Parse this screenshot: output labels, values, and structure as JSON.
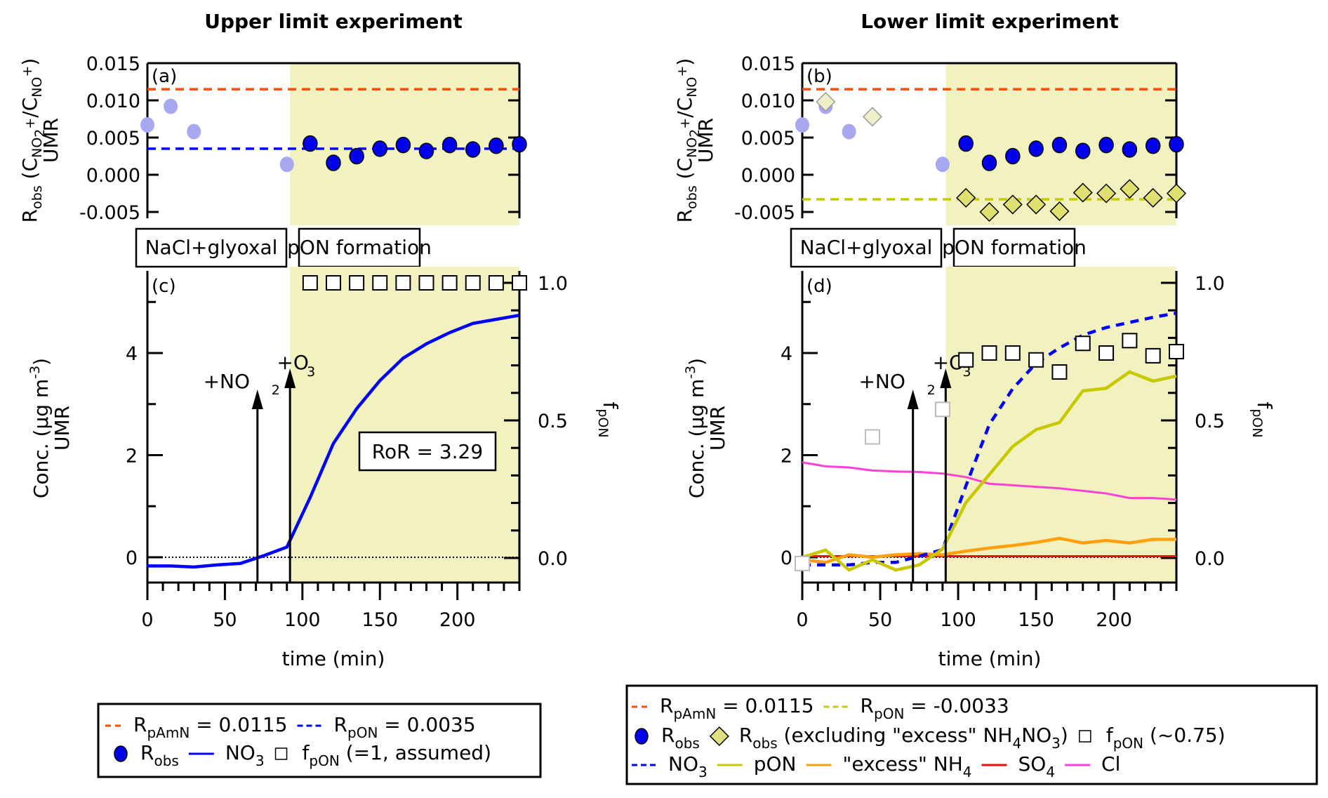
{
  "chart_data": [
    {
      "panel": "(a)",
      "column_title": "Upper limit experiment",
      "type": "scatter",
      "ylabel_main": "R",
      "ylabel_sub": "obs",
      "ylabel_rest": "(C",
      "ylabel_line2": "UMR",
      "ylabel_full": "R_obs (C_NO2+/C_NO+) UMR",
      "xlim": [
        0,
        240
      ],
      "ylim": [
        -0.005,
        0.015
      ],
      "yticks": [
        "0.015",
        "0.010",
        "0.005",
        "0.000",
        "-0.005"
      ],
      "ytick_values": [
        0.015,
        0.01,
        0.005,
        0.0,
        -0.005
      ],
      "shaded_region_start": 92,
      "hlines": [
        {
          "name": "R_pAmN",
          "value": 0.0115,
          "color": "#ff4c00",
          "style": "dashed"
        },
        {
          "name": "R_pON",
          "value": 0.0035,
          "color": "#0000ff",
          "style": "dashed"
        }
      ],
      "series": [
        {
          "name": "R_obs (faded, pre-formation)",
          "marker": "circle",
          "color": "#a8a8f0",
          "x": [
            0,
            15,
            30,
            90
          ],
          "y": [
            0.0067,
            0.0092,
            0.0058,
            0.0014
          ]
        },
        {
          "name": "R_obs",
          "marker": "circle",
          "color": "#0000ee",
          "x": [
            105,
            120,
            135,
            150,
            165,
            180,
            195,
            210,
            225,
            240
          ],
          "y": [
            0.0042,
            0.0016,
            0.0025,
            0.0035,
            0.004,
            0.0032,
            0.004,
            0.0034,
            0.0039,
            0.0041
          ]
        }
      ],
      "phase_labels": [
        "NaCl+glyoxal",
        "pON formation"
      ]
    },
    {
      "panel": "(b)",
      "column_title": "Lower limit experiment",
      "type": "scatter",
      "ylabel_full": "R_obs (C_NO2+/C_NO+) UMR",
      "xlim": [
        0,
        240
      ],
      "ylim": [
        -0.005,
        0.015
      ],
      "yticks": [
        "0.015",
        "0.010",
        "0.005",
        "0.000",
        "-0.005"
      ],
      "ytick_values": [
        0.015,
        0.01,
        0.005,
        0.0,
        -0.005
      ],
      "shaded_region_start": 92,
      "hlines": [
        {
          "name": "R_pAmN",
          "value": 0.0115,
          "color": "#ff4c00",
          "style": "dashed"
        },
        {
          "name": "R_pON",
          "value": -0.0033,
          "color": "#c8c800",
          "style": "dashed"
        }
      ],
      "series": [
        {
          "name": "R_obs (faded, pre-formation)",
          "marker": "circle",
          "color": "#a8a8f0",
          "x": [
            0,
            15,
            30,
            90
          ],
          "y": [
            0.0067,
            0.0092,
            0.0058,
            0.0014
          ]
        },
        {
          "name": "R_obs excl. excess NH4NO3 (faded)",
          "marker": "diamond",
          "color": "#f0f0c8",
          "x": [
            15,
            45
          ],
          "y": [
            0.0098,
            0.0078
          ]
        },
        {
          "name": "R_obs",
          "marker": "circle",
          "color": "#0000ee",
          "x": [
            105,
            120,
            135,
            150,
            165,
            180,
            195,
            210,
            225,
            240
          ],
          "y": [
            0.0042,
            0.0016,
            0.0025,
            0.0035,
            0.004,
            0.0032,
            0.004,
            0.0034,
            0.0039,
            0.0041
          ]
        },
        {
          "name": "R_obs (excluding \"excess\" NH4NO3)",
          "marker": "diamond",
          "color": "#e0e070",
          "x": [
            105,
            120,
            135,
            150,
            165,
            180,
            195,
            210,
            225,
            240
          ],
          "y": [
            -0.0031,
            -0.005,
            -0.004,
            -0.004,
            -0.0049,
            -0.0024,
            -0.0025,
            -0.0019,
            -0.0031,
            -0.0025
          ]
        }
      ],
      "phase_labels": [
        "NaCl+glyoxal",
        "pON formation"
      ]
    },
    {
      "panel": "(c)",
      "type": "line",
      "xlabel": "time (min)",
      "ylabel_full": "Conc. (µg m^-3) UMR",
      "y2label": "f_pON",
      "xlim": [
        0,
        240
      ],
      "ylim": [
        -0.5,
        5.6
      ],
      "y2lim": [
        0,
        1
      ],
      "xticks": [
        "0",
        "50",
        "100",
        "150",
        "200"
      ],
      "xtick_values": [
        0,
        50,
        100,
        150,
        200
      ],
      "yticks": [
        "0",
        "2",
        "4"
      ],
      "ytick_values": [
        0,
        2,
        4
      ],
      "y2ticks": [
        "0.0",
        "0.5",
        "1.0"
      ],
      "y2tick_values": [
        0,
        0.5,
        1.0
      ],
      "shaded_region_start": 92,
      "annotations": {
        "no2": "+NO",
        "no2_sub": "2",
        "o3": "+O",
        "o3_sub": "3",
        "no2_time": 71,
        "o3_time": 92,
        "ror": "RoR = 3.29"
      },
      "series": [
        {
          "name": "NO3",
          "style": "solid",
          "color": "#0000ff",
          "x": [
            0,
            15,
            30,
            45,
            60,
            75,
            90,
            105,
            120,
            135,
            150,
            165,
            180,
            195,
            210,
            225,
            240
          ],
          "y": [
            -0.17,
            -0.17,
            -0.19,
            -0.15,
            -0.12,
            0.03,
            0.2,
            1.17,
            2.23,
            2.91,
            3.46,
            3.9,
            4.18,
            4.4,
            4.58,
            4.66,
            4.74
          ]
        },
        {
          "name": "f_pON (=1, assumed)",
          "axis": "right",
          "marker": "square",
          "color": "#ffffff",
          "x": [
            105,
            120,
            135,
            150,
            165,
            180,
            195,
            210,
            225,
            240
          ],
          "y": [
            1,
            1,
            1,
            1,
            1,
            1,
            1,
            1,
            1,
            1
          ]
        }
      ]
    },
    {
      "panel": "(d)",
      "type": "line",
      "xlabel": "time (min)",
      "ylabel_full": "Conc. (µg m^-3) UMR",
      "y2label": "f_pON",
      "xlim": [
        0,
        240
      ],
      "ylim": [
        -0.5,
        5.6
      ],
      "y2lim": [
        0,
        1
      ],
      "xticks": [
        "0",
        "50",
        "100",
        "150",
        "200"
      ],
      "xtick_values": [
        0,
        50,
        100,
        150,
        200
      ],
      "yticks": [
        "0",
        "2",
        "4"
      ],
      "ytick_values": [
        0,
        2,
        4
      ],
      "y2ticks": [
        "0.0",
        "0.5",
        "1.0"
      ],
      "y2tick_values": [
        0,
        0.5,
        1.0
      ],
      "shaded_region_start": 92,
      "annotations": {
        "no2": "+NO",
        "no2_sub": "2",
        "o3": "+O",
        "o3_sub": "3",
        "no2_time": 71,
        "o3_time": 92
      },
      "series": [
        {
          "name": "Cl",
          "style": "solid",
          "color": "#ff40d8",
          "x": [
            0,
            15,
            30,
            45,
            60,
            75,
            90,
            105,
            120,
            135,
            150,
            165,
            180,
            195,
            210,
            225,
            240
          ],
          "y": [
            1.86,
            1.78,
            1.76,
            1.7,
            1.68,
            1.67,
            1.64,
            1.57,
            1.44,
            1.41,
            1.38,
            1.35,
            1.3,
            1.25,
            1.16,
            1.16,
            1.13
          ]
        },
        {
          "name": "SO4",
          "style": "solid",
          "color": "#ee1010",
          "x": [
            0,
            60,
            120,
            180,
            240
          ],
          "y": [
            0.02,
            0.02,
            0.02,
            0.02,
            0.02
          ]
        },
        {
          "name": "\"excess\" NH4",
          "style": "solid",
          "color": "#ffa010",
          "x": [
            0,
            15,
            30,
            45,
            60,
            75,
            90,
            105,
            120,
            135,
            150,
            165,
            180,
            195,
            210,
            225,
            240
          ],
          "y": [
            -0.05,
            -0.1,
            0.05,
            0.0,
            0.05,
            0.07,
            0.05,
            0.12,
            0.18,
            0.23,
            0.29,
            0.37,
            0.28,
            0.33,
            0.28,
            0.35,
            0.35
          ]
        },
        {
          "name": "NO3",
          "style": "dashed",
          "color": "#0000ff",
          "x": [
            0,
            15,
            30,
            45,
            60,
            75,
            90,
            105,
            120,
            135,
            150,
            165,
            180,
            195,
            210,
            225,
            240
          ],
          "y": [
            -0.15,
            -0.15,
            -0.15,
            -0.1,
            -0.1,
            0.02,
            0.15,
            1.4,
            2.6,
            3.3,
            3.8,
            4.1,
            4.35,
            4.5,
            4.6,
            4.7,
            4.78
          ]
        },
        {
          "name": "pON",
          "style": "solid",
          "color": "#c8c800",
          "x": [
            0,
            15,
            30,
            45,
            60,
            75,
            90,
            105,
            120,
            135,
            150,
            165,
            180,
            195,
            210,
            225,
            240
          ],
          "y": [
            0.0,
            0.14,
            -0.25,
            -0.05,
            -0.25,
            -0.15,
            0.16,
            1.07,
            1.62,
            2.17,
            2.5,
            2.64,
            3.26,
            3.31,
            3.63,
            3.45,
            3.55
          ]
        },
        {
          "name": "f_pON (faded, pre-formation)",
          "axis": "right",
          "marker": "square",
          "color": "#ffffff",
          "x": [
            0,
            45,
            90
          ],
          "y": [
            -0.02,
            0.44,
            0.54
          ]
        },
        {
          "name": "f_pON (~0.75)",
          "axis": "right",
          "marker": "square",
          "color": "#ffffff",
          "x": [
            105,
            120,
            135,
            150,
            165,
            180,
            195,
            210,
            225,
            240
          ],
          "y": [
            0.72,
            0.745,
            0.745,
            0.72,
            0.676,
            0.78,
            0.745,
            0.79,
            0.735,
            0.75
          ]
        }
      ]
    }
  ],
  "legends": {
    "left": {
      "row1": [
        {
          "symbol": "orange-dash",
          "main": "R",
          "sub": "pAmN",
          "rest": " = 0.0115"
        },
        {
          "symbol": "blue-dash",
          "main": "R",
          "sub": "pON",
          "rest": " = 0.0035"
        }
      ],
      "row2": [
        {
          "symbol": "blue-circle",
          "main": "R",
          "sub": "obs",
          "rest": ""
        },
        {
          "symbol": "blue-line",
          "main": "NO",
          "sub": "3",
          "rest": ""
        },
        {
          "symbol": "open-square",
          "main": "f",
          "sub": "pON",
          "rest": " (=1, assumed)"
        }
      ]
    },
    "right": {
      "row1": [
        {
          "symbol": "orange-dash",
          "main": "R",
          "sub": "pAmN",
          "rest": " = 0.0115"
        },
        {
          "symbol": "yellow-dash",
          "main": "R",
          "sub": "pON",
          "rest": " = -0.0033"
        }
      ],
      "row2": [
        {
          "symbol": "blue-circle",
          "main": "R",
          "sub": "obs",
          "rest": ""
        },
        {
          "symbol": "yellow-diamond",
          "main": "R",
          "sub": "obs",
          "rest": " (excluding \"excess\" NH",
          "sub2": "4",
          "rest2": "NO",
          "sub3": "3",
          "rest3": ")"
        },
        {
          "symbol": "open-square",
          "main": "f",
          "sub": "pON",
          "rest": " (~0.75)"
        }
      ],
      "row3": [
        {
          "symbol": "blue-dash",
          "main": "NO",
          "sub": "3",
          "rest": ""
        },
        {
          "symbol": "yellow-line",
          "main": "pON",
          "sub": "",
          "rest": ""
        },
        {
          "symbol": "orange-line",
          "main": "\"excess\" NH",
          "sub": "4",
          "rest": ""
        },
        {
          "symbol": "red-line",
          "main": "SO",
          "sub": "4",
          "rest": ""
        },
        {
          "symbol": "magenta-line",
          "main": "Cl",
          "sub": "",
          "rest": ""
        }
      ]
    }
  },
  "labels": {
    "upper_title": "Upper limit experiment",
    "lower_title": "Lower limit experiment",
    "phase1": "NaCl+glyoxal",
    "phase2": "pON formation",
    "xlabel": "time (min)",
    "ytop_R": "R",
    "ytop_obs": "obs",
    "ytop_C1": "(C",
    "ytop_NO2": "NO",
    "ytop_2": "2",
    "ytop_plus": "+",
    "ytop_slash": "/C",
    "ytop_NO": "NO",
    "ytop_close": ")",
    "ytop_umr": "UMR",
    "ybot_conc": "Conc. (µg m",
    "ybot_exp": "-3",
    "ybot_close": ")",
    "ybot_umr": "UMR",
    "y2_f": "f",
    "y2_sub": "pON"
  },
  "colors": {
    "shade": "#f2f2c0",
    "orange_ref": "#ff4c00",
    "blue": "#0000ff",
    "yellow": "#c8c800",
    "orange": "#ffa010",
    "red": "#ee1010",
    "magenta": "#ff40d8"
  }
}
